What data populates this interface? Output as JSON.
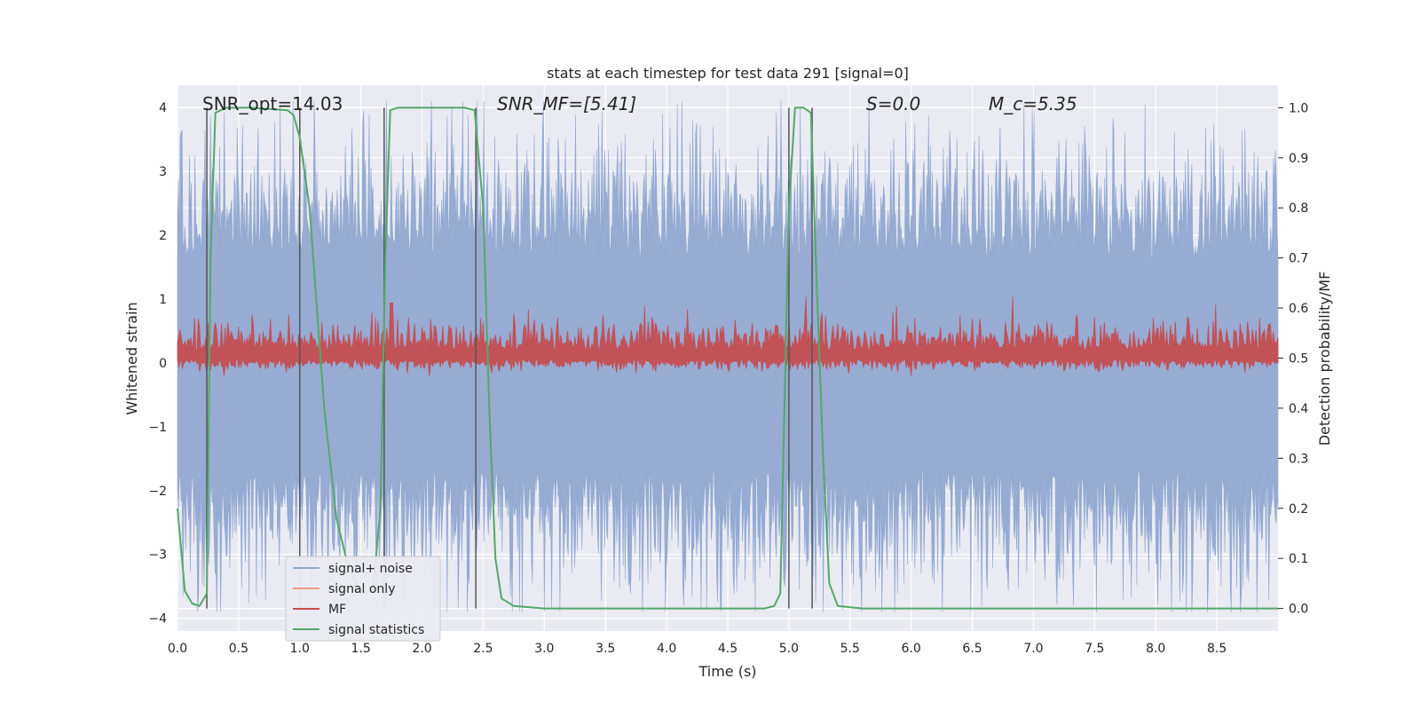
{
  "chart_data": {
    "type": "line",
    "title": "stats at each timestep for test data 291 [signal=0]",
    "xlabel": "Time (s)",
    "ylabel": "Whitened strain",
    "ylabel_right": "Detection probability/MF",
    "xlim": [
      0.0,
      9.0
    ],
    "ylim": [
      -4.2,
      4.35
    ],
    "ylim_right": [
      -0.045,
      1.045
    ],
    "x_ticks": [
      "0.0",
      "0.5",
      "1.0",
      "1.5",
      "2.0",
      "2.5",
      "3.0",
      "3.5",
      "4.0",
      "4.5",
      "5.0",
      "5.5",
      "6.0",
      "6.5",
      "7.0",
      "7.5",
      "8.0",
      "8.5"
    ],
    "y_ticks": [
      "4",
      "3",
      "2",
      "1",
      "0",
      "−1",
      "−2",
      "−3",
      "−4"
    ],
    "y_ticks_right": [
      "1.0",
      "0.9",
      "0.8",
      "0.7",
      "0.6",
      "0.5",
      "0.4",
      "0.3",
      "0.2",
      "0.1",
      "0.0"
    ],
    "grid": true,
    "legend_position": "lower-left",
    "annotations": [
      {
        "name": "snr-opt",
        "text": "SNR_opt=14.03",
        "x": 0.2
      },
      {
        "name": "snr-mf",
        "text": "SNR_MF=[5.41]",
        "x": 2.6
      },
      {
        "name": "s-value",
        "text": "S=0.0",
        "x": 5.6
      },
      {
        "name": "mc-value",
        "text": "M_c=5.35",
        "x": 6.6
      }
    ],
    "series": [
      {
        "name": "signal+ noise",
        "color": "#92a8d1",
        "description": "noise envelope",
        "amplitude": 2.2
      },
      {
        "name": "signal only",
        "color": "#e8a07f",
        "values": []
      },
      {
        "name": "MF",
        "color": "#c44e52",
        "baseline": 0.5,
        "amplitude": 0.05
      },
      {
        "name": "signal statistics",
        "color": "#55a868",
        "x": [
          0.0,
          0.06,
          0.12,
          0.18,
          0.24,
          0.27,
          0.31,
          0.4,
          0.6,
          0.9,
          0.95,
          1.0,
          1.08,
          1.2,
          1.3,
          1.4,
          1.5,
          1.55,
          1.6,
          1.66,
          1.7,
          1.74,
          1.8,
          2.0,
          2.2,
          2.35,
          2.43,
          2.5,
          2.55,
          2.6,
          2.65,
          2.75,
          3.0,
          4.0,
          4.8,
          4.88,
          4.93,
          5.0,
          5.05,
          5.12,
          5.18,
          5.22,
          5.28,
          5.33,
          5.4,
          5.6,
          7.0,
          9.0
        ],
        "values": [
          0.2,
          0.035,
          0.01,
          0.005,
          0.03,
          0.7,
          0.99,
          1.0,
          1.0,
          0.995,
          0.985,
          0.94,
          0.8,
          0.4,
          0.18,
          0.08,
          0.035,
          0.03,
          0.04,
          0.2,
          0.7,
          0.995,
          1.0,
          1.0,
          1.0,
          1.0,
          0.995,
          0.8,
          0.4,
          0.1,
          0.02,
          0.005,
          0.0,
          0.0,
          0.0,
          0.005,
          0.03,
          0.8,
          1.0,
          1.0,
          0.99,
          0.7,
          0.3,
          0.05,
          0.005,
          0.0,
          0.0,
          0.0
        ]
      },
      {
        "name": "vertical-markers",
        "color": "#555555",
        "x": [
          0.24,
          1.0,
          1.69,
          2.44,
          5.0,
          5.19
        ]
      }
    ]
  }
}
